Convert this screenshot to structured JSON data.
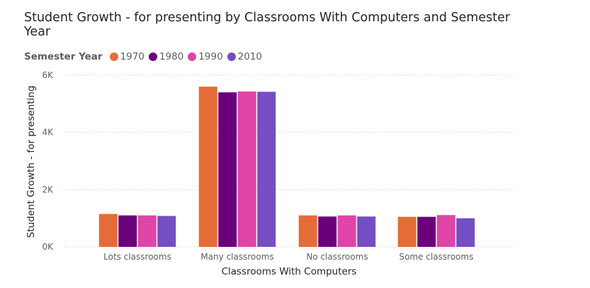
{
  "chart_data": {
    "type": "bar",
    "title": "Student Growth - for presenting by Classrooms With Computers and Semester Year",
    "xlabel": "Classrooms With Computers",
    "ylabel": "Student Growth - for presenting",
    "legend_title": "Semester Year",
    "legend_position": "top-left",
    "grid": true,
    "categories": [
      "Lots classrooms",
      "Many classrooms",
      "No classrooms",
      "Some classrooms"
    ],
    "ylim": [
      0,
      6000
    ],
    "y_ticks": [
      0,
      2000,
      4000,
      6000
    ],
    "y_tick_labels": [
      "0K",
      "2K",
      "4K",
      "6K"
    ],
    "series": [
      {
        "name": "1970",
        "color": "#E66C37",
        "values": [
          1150,
          5600,
          1100,
          1050
        ]
      },
      {
        "name": "1980",
        "color": "#6B007B",
        "values": [
          1100,
          5400,
          1060,
          1050
        ]
      },
      {
        "name": "1990",
        "color": "#E044A7",
        "values": [
          1100,
          5430,
          1100,
          1110
        ]
      },
      {
        "name": "2010",
        "color": "#744EC2",
        "values": [
          1080,
          5420,
          1060,
          1000
        ]
      }
    ]
  }
}
